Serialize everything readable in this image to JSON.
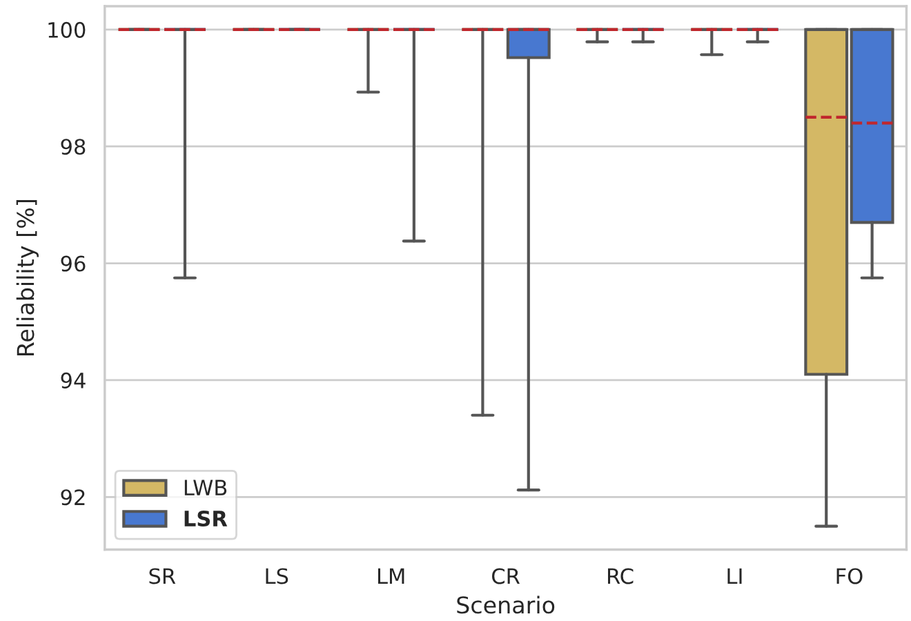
{
  "chart_data": {
    "type": "box",
    "xlabel": "Scenario",
    "ylabel": "Reliability [%]",
    "categories": [
      "SR",
      "LS",
      "LM",
      "CR",
      "RC",
      "LI",
      "FO"
    ],
    "ylim": [
      91.1,
      100.4
    ],
    "yticks": [
      92,
      94,
      96,
      98,
      100
    ],
    "grid": "y",
    "legend": "bottom left",
    "series": [
      {
        "name": "LWB",
        "color": "#d4b865",
        "boxes": [
          {
            "low": 100,
            "q1": 100,
            "median": 100,
            "q3": 100,
            "high": 100,
            "mean": 100
          },
          {
            "low": 100,
            "q1": 100,
            "median": 100,
            "q3": 100,
            "high": 100,
            "mean": 100
          },
          {
            "low": 98.93,
            "q1": 100,
            "median": 100,
            "q3": 100,
            "high": 100,
            "mean": 100
          },
          {
            "low": 93.4,
            "q1": 100,
            "median": 100,
            "q3": 100,
            "high": 100,
            "mean": 100
          },
          {
            "low": 99.79,
            "q1": 100,
            "median": 100,
            "q3": 100,
            "high": 100,
            "mean": 100
          },
          {
            "low": 99.57,
            "q1": 100,
            "median": 100,
            "q3": 100,
            "high": 100,
            "mean": 100
          },
          {
            "low": 91.5,
            "q1": 94.1,
            "median": 100,
            "q3": 100,
            "high": 100,
            "mean": 98.5
          }
        ]
      },
      {
        "name": "LSR",
        "color": "#4878d0",
        "boxes": [
          {
            "low": 95.75,
            "q1": 100,
            "median": 100,
            "q3": 100,
            "high": 100,
            "mean": 100
          },
          {
            "low": 100,
            "q1": 100,
            "median": 100,
            "q3": 100,
            "high": 100,
            "mean": 100
          },
          {
            "low": 96.38,
            "q1": 100,
            "median": 100,
            "q3": 100,
            "high": 100,
            "mean": 100
          },
          {
            "low": 92.12,
            "q1": 99.52,
            "median": 100,
            "q3": 100,
            "high": 100,
            "mean": 100
          },
          {
            "low": 99.79,
            "q1": 100,
            "median": 100,
            "q3": 100,
            "high": 100,
            "mean": 100
          },
          {
            "low": 99.79,
            "q1": 100,
            "median": 100,
            "q3": 100,
            "high": 100,
            "mean": 100
          },
          {
            "low": 95.75,
            "q1": 96.7,
            "median": 100,
            "q3": 100,
            "high": 100,
            "mean": 98.4
          }
        ]
      }
    ]
  }
}
